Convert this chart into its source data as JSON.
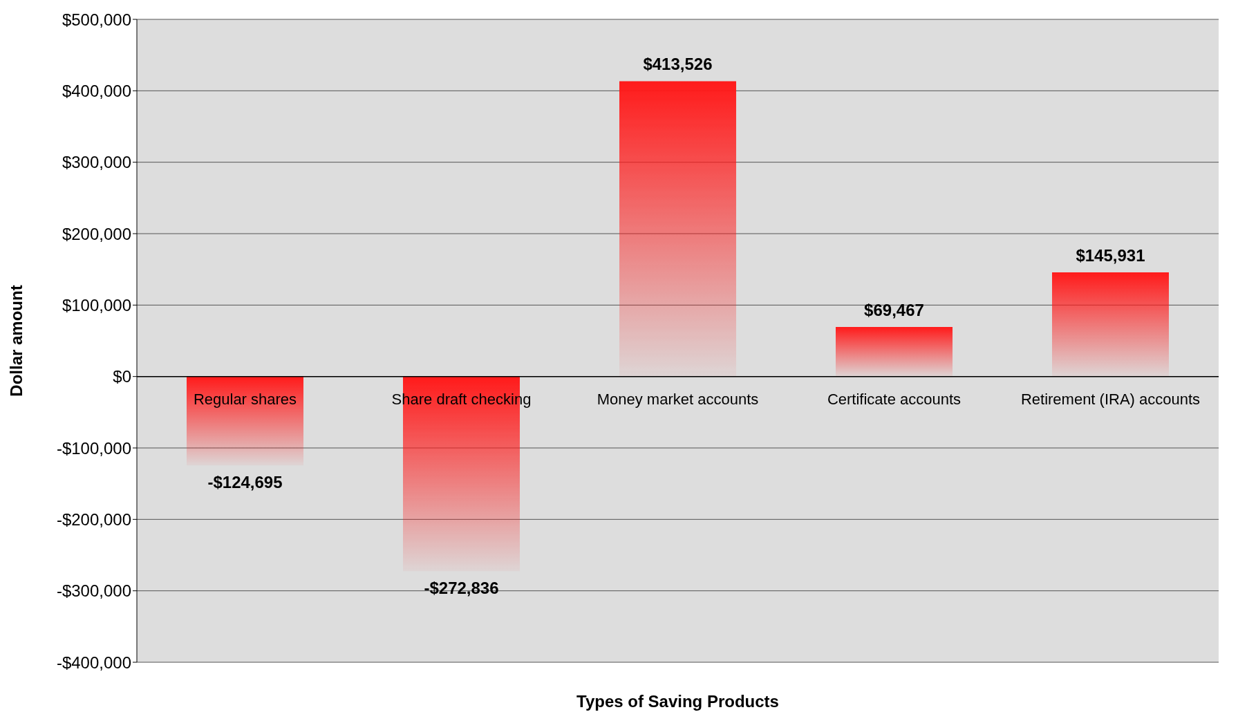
{
  "chart_data": {
    "type": "bar",
    "xlabel": "Types of Saving Products",
    "ylabel": "Dollar amount",
    "categories": [
      "Regular shares",
      "Share draft checking",
      "Money market accounts",
      "Certificate accounts",
      "Retirement (IRA) accounts"
    ],
    "values": [
      -124695,
      -272836,
      413526,
      69467,
      145931
    ],
    "color": "#ff1a1a",
    "value_labels": [
      "-$124,695",
      "-$272,836",
      "$413,526",
      "$69,467",
      "$145,931"
    ],
    "ylim": [
      -400000,
      500000
    ],
    "yticks": [
      {
        "value": -400000,
        "label": "-$400,000"
      },
      {
        "value": -300000,
        "label": "-$300,000"
      },
      {
        "value": -200000,
        "label": "-$200,000"
      },
      {
        "value": -100000,
        "label": "-$100,000"
      },
      {
        "value": 0,
        "label": "$0"
      },
      {
        "value": 100000,
        "label": "$100,000"
      },
      {
        "value": 200000,
        "label": "$200,000"
      },
      {
        "value": 300000,
        "label": "$300,000"
      },
      {
        "value": 400000,
        "label": "$400,000"
      },
      {
        "value": 500000,
        "label": "$500,000"
      }
    ],
    "grid": "y"
  }
}
